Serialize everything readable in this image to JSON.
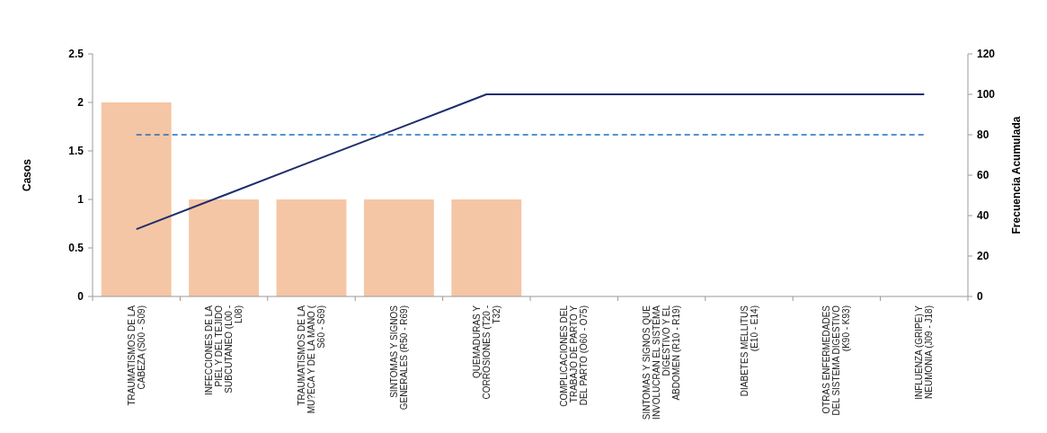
{
  "chart_data": {
    "type": "bar",
    "ylabel": "Casos",
    "y2label": "Frecuencia Acumulada",
    "categories": [
      "TRAUMATISMOS DE LA CABEZA (S00 - S09)",
      "INFECCIONES DE LA PIEL Y DEL TEJIDO SUBCUTANEO (L00 - L08)",
      "TRAUMATISMOS DE LA MU?ECA Y DE LA MANO ( S60 - S69)",
      "SINTOMAS Y SIGNOS GENERALES (R50 - R69)",
      "QUEMADURAS Y CORROSIONES (T20 - T32)",
      "COMPLICACIONES DEL TRABAJO DE PARTO Y DEL PARTO (O60 - O75)",
      "SINTOMAS Y SIGNOS QUE INVOLUCRAN EL SISTEMA DIGESTIVO Y EL ABDOMEN (R10 - R19)",
      "DIABETES MELLITUS (E10 - E14)",
      "OTRAS ENFERMEDADES DEL SISTEMA DIGESTIVO (K90 - K93)",
      "INFLUENZA (GRIPE) Y NEUMONIA (J09 - J18)"
    ],
    "series": [
      {
        "color": "#f5c6a5",
        "values": [
          2,
          1,
          1,
          1,
          1,
          0,
          0,
          0,
          0,
          0
        ]
      },
      {
        "type": "line",
        "axis": "y2",
        "color": "#1f2d6b",
        "values": [
          33.3,
          50,
          66.7,
          83.3,
          100,
          100,
          100,
          100,
          100,
          100
        ]
      }
    ],
    "ylim": [
      0,
      2.5
    ],
    "yticks": [
      0,
      0.5,
      1,
      1.5,
      2,
      2.5
    ],
    "y2lim": [
      0,
      120
    ],
    "y2ticks": [
      0,
      20,
      40,
      60,
      80,
      100,
      120
    ],
    "ref_lines": [
      {
        "axis": "y2",
        "value": 80,
        "color": "#1f6fbf",
        "line_style": "dashed"
      }
    ],
    "grid": false,
    "marker": "none"
  }
}
